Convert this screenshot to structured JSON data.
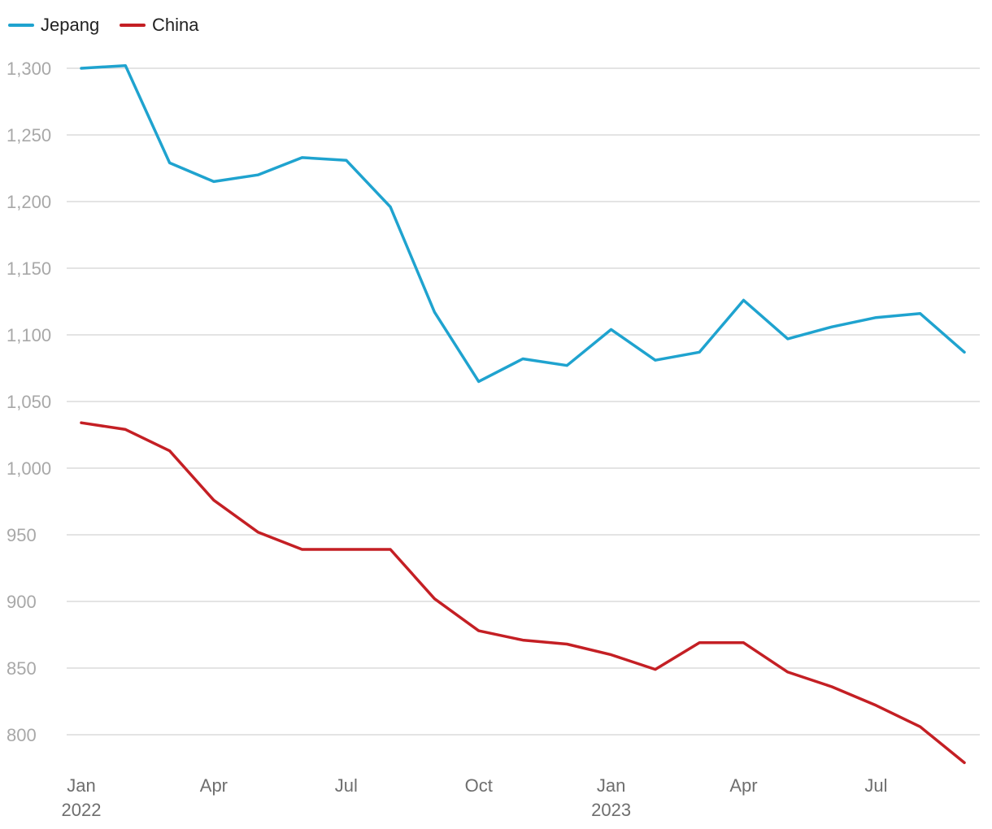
{
  "chart_data": {
    "type": "line",
    "title": "",
    "xlabel": "",
    "ylabel": "",
    "x": [
      "2022-01",
      "2022-02",
      "2022-03",
      "2022-04",
      "2022-05",
      "2022-06",
      "2022-07",
      "2022-08",
      "2022-09",
      "2022-10",
      "2022-11",
      "2022-12",
      "2023-01",
      "2023-02",
      "2023-03",
      "2023-04",
      "2023-05",
      "2023-06",
      "2023-07",
      "2023-08",
      "2023-09"
    ],
    "x_ticks": [
      {
        "x": "2022-01",
        "label": "Jan",
        "sublabel": "2022"
      },
      {
        "x": "2022-04",
        "label": "Apr",
        "sublabel": ""
      },
      {
        "x": "2022-07",
        "label": "Jul",
        "sublabel": ""
      },
      {
        "x": "2022-10",
        "label": "Oct",
        "sublabel": ""
      },
      {
        "x": "2023-01",
        "label": "Jan",
        "sublabel": "2023"
      },
      {
        "x": "2023-04",
        "label": "Apr",
        "sublabel": ""
      },
      {
        "x": "2023-07",
        "label": "Jul",
        "sublabel": ""
      }
    ],
    "y_ticks": [
      {
        "value": 800,
        "label": "800"
      },
      {
        "value": 850,
        "label": "850"
      },
      {
        "value": 900,
        "label": "900"
      },
      {
        "value": 950,
        "label": "950"
      },
      {
        "value": 1000,
        "label": "1,000"
      },
      {
        "value": 1050,
        "label": "1,050"
      },
      {
        "value": 1100,
        "label": "1,100"
      },
      {
        "value": 1150,
        "label": "1,150"
      },
      {
        "value": 1200,
        "label": "1,200"
      },
      {
        "value": 1250,
        "label": "1,250"
      },
      {
        "value": 1300,
        "label": "1,300"
      }
    ],
    "ylim": [
      800,
      1300
    ],
    "grid": true,
    "legend_position": "top-left",
    "series": [
      {
        "name": "Jepang",
        "color": "#1fa3cf",
        "values": [
          1300,
          1302,
          1229,
          1215,
          1220,
          1233,
          1231,
          1196,
          1117,
          1065,
          1082,
          1077,
          1104,
          1081,
          1087,
          1126,
          1097,
          1106,
          1113,
          1116,
          1087
        ]
      },
      {
        "name": "China",
        "color": "#c41f24",
        "values": [
          1034,
          1029,
          1013,
          976,
          952,
          939,
          939,
          939,
          902,
          878,
          871,
          868,
          860,
          849,
          869,
          869,
          847,
          836,
          822,
          806,
          779
        ]
      }
    ]
  }
}
